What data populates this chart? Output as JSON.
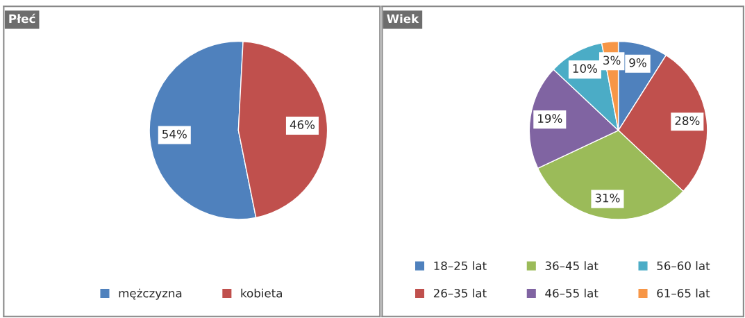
{
  "chart_data": [
    {
      "type": "pie",
      "title": "Płeć",
      "categories": [
        "mężczyzna",
        "kobieta"
      ],
      "values": [
        54,
        46
      ],
      "colors": [
        "#4f81bd",
        "#c0504d"
      ],
      "value_labels": [
        "54%",
        "46%"
      ],
      "legend": "bottom"
    },
    {
      "type": "pie",
      "title": "Wiek",
      "categories": [
        "18–25 lat",
        "26–35 lat",
        "36–45 lat",
        "46–55 lat",
        "56–60 lat",
        "61–65 lat"
      ],
      "values": [
        9,
        28,
        31,
        19,
        10,
        3
      ],
      "colors": [
        "#4f81bd",
        "#c0504d",
        "#9bbb59",
        "#8064a2",
        "#4bacc6",
        "#f79646"
      ],
      "value_labels": [
        "9%",
        "28%",
        "31%",
        "19%",
        "10%",
        "3%"
      ],
      "legend": "bottom"
    }
  ]
}
